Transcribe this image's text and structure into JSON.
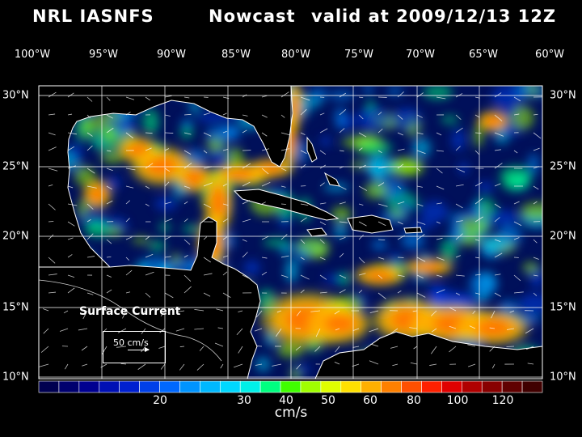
{
  "header": {
    "org": "NRL IASNFS",
    "product": "Nowcast",
    "validity": "valid at 2009/12/13 12Z"
  },
  "map": {
    "longitude_labels": [
      "100°W",
      "95°W",
      "90°W",
      "85°W",
      "80°W",
      "75°W",
      "70°W",
      "65°W",
      "60°W"
    ],
    "latitude_labels": [
      "30°N",
      "25°N",
      "20°N",
      "15°N",
      "10°N"
    ],
    "field": "Surface Current",
    "reference_vector": "50 cm/s",
    "colors": {
      "land": "#000000",
      "ocean_slow": "#00105a",
      "coast": "#ffffff",
      "grid": "#ffffff"
    }
  },
  "colorbar": {
    "unit": "cm/s",
    "tick_labels": [
      "20",
      "30",
      "40",
      "50",
      "60",
      "80",
      "100",
      "120"
    ],
    "colors": [
      "#000050",
      "#00006e",
      "#000090",
      "#0010b4",
      "#0020d0",
      "#0040e8",
      "#0068ff",
      "#0094ff",
      "#00b8ff",
      "#00d8ff",
      "#00f0e8",
      "#00ff80",
      "#40ff00",
      "#a0ff00",
      "#e0ff00",
      "#ffe000",
      "#ffb000",
      "#ff8000",
      "#ff5000",
      "#ff2000",
      "#e00000",
      "#b00000",
      "#880000",
      "#600000",
      "#400000"
    ]
  }
}
